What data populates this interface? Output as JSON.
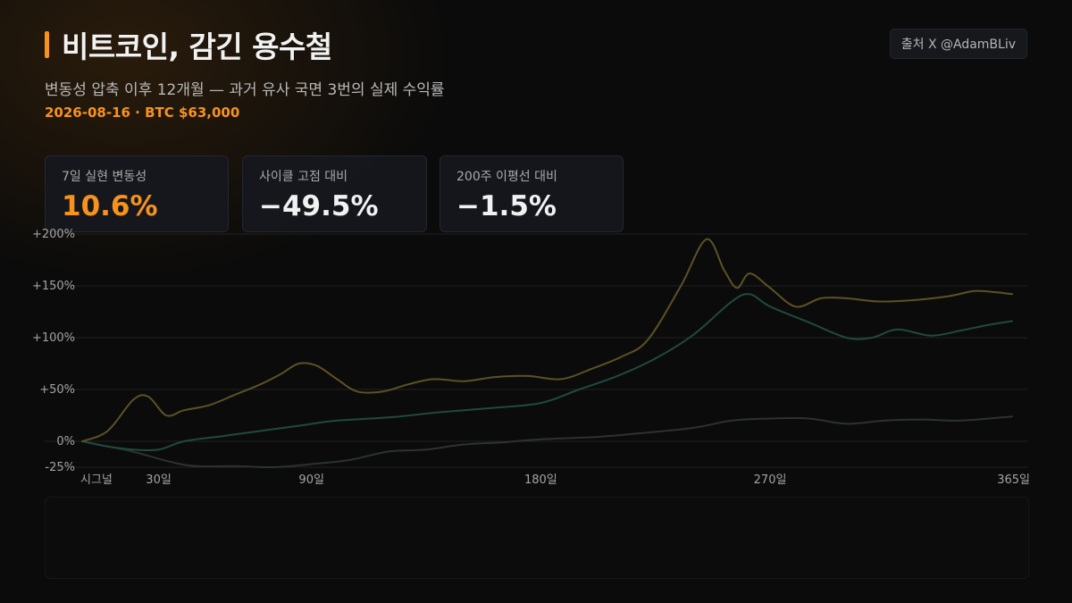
{
  "header": {
    "title": "비트코인, 감긴 용수철",
    "subtitle": "변동성 압축 이후 12개월 — 과거 유사 국면 3번의 실제 수익률",
    "dateline": "2026-08-16 · BTC $63,000",
    "source": "출처 X @AdamBLiv"
  },
  "stats": [
    {
      "label": "7일 실현 변동성",
      "value": "10.6%"
    },
    {
      "label": "사이클 고점 대비",
      "value": "−49.5%"
    },
    {
      "label": "200주 이평선 대비",
      "value": "−1.5%"
    }
  ],
  "colors": {
    "accent": "#f7931a",
    "series_olive": "#5c5224",
    "series_teal": "#1f4a3c",
    "series_gray": "#2b3331"
  },
  "chart_data": {
    "type": "line",
    "xlim": [
      0,
      365
    ],
    "ylim": [
      -25,
      200
    ],
    "grid": true,
    "x_ticks": [
      {
        "x": 0,
        "label": "시그널"
      },
      {
        "x": 30,
        "label": "30일"
      },
      {
        "x": 90,
        "label": "90일"
      },
      {
        "x": 180,
        "label": "180일"
      },
      {
        "x": 270,
        "label": "270일"
      },
      {
        "x": 365,
        "label": "365일"
      }
    ],
    "y_ticks": [
      {
        "y": 200,
        "label": "+200%"
      },
      {
        "y": 150,
        "label": "+150%"
      },
      {
        "y": 100,
        "label": "+100%"
      },
      {
        "y": 50,
        "label": "+50%"
      },
      {
        "y": 0,
        "label": "0%"
      },
      {
        "y": -25,
        "label": "-25%"
      }
    ],
    "series": [
      {
        "color": "#5c5224",
        "points": [
          [
            0,
            0
          ],
          [
            10,
            10
          ],
          [
            20,
            40
          ],
          [
            26,
            43
          ],
          [
            33,
            25
          ],
          [
            40,
            30
          ],
          [
            50,
            35
          ],
          [
            60,
            45
          ],
          [
            70,
            55
          ],
          [
            78,
            65
          ],
          [
            85,
            75
          ],
          [
            92,
            73
          ],
          [
            100,
            60
          ],
          [
            108,
            48
          ],
          [
            118,
            48
          ],
          [
            128,
            55
          ],
          [
            138,
            60
          ],
          [
            150,
            58
          ],
          [
            162,
            62
          ],
          [
            175,
            63
          ],
          [
            188,
            60
          ],
          [
            200,
            70
          ],
          [
            212,
            82
          ],
          [
            222,
            98
          ],
          [
            235,
            150
          ],
          [
            245,
            195
          ],
          [
            252,
            165
          ],
          [
            257,
            148
          ],
          [
            262,
            162
          ],
          [
            270,
            148
          ],
          [
            280,
            130
          ],
          [
            290,
            138
          ],
          [
            300,
            138
          ],
          [
            312,
            135
          ],
          [
            325,
            136
          ],
          [
            340,
            140
          ],
          [
            350,
            145
          ],
          [
            358,
            144
          ],
          [
            365,
            142
          ]
        ]
      },
      {
        "color": "#1f4a3c",
        "points": [
          [
            0,
            0
          ],
          [
            10,
            -5
          ],
          [
            20,
            -8
          ],
          [
            30,
            -8
          ],
          [
            40,
            0
          ],
          [
            55,
            5
          ],
          [
            70,
            10
          ],
          [
            85,
            15
          ],
          [
            100,
            20
          ],
          [
            120,
            23
          ],
          [
            140,
            28
          ],
          [
            160,
            32
          ],
          [
            180,
            37
          ],
          [
            195,
            50
          ],
          [
            210,
            63
          ],
          [
            225,
            80
          ],
          [
            240,
            103
          ],
          [
            255,
            135
          ],
          [
            262,
            142
          ],
          [
            270,
            130
          ],
          [
            285,
            115
          ],
          [
            300,
            100
          ],
          [
            310,
            100
          ],
          [
            320,
            108
          ],
          [
            333,
            102
          ],
          [
            345,
            107
          ],
          [
            355,
            112
          ],
          [
            365,
            116
          ]
        ]
      },
      {
        "color": "#2b3331",
        "points": [
          [
            0,
            0
          ],
          [
            10,
            -5
          ],
          [
            20,
            -10
          ],
          [
            35,
            -20
          ],
          [
            45,
            -24
          ],
          [
            60,
            -24
          ],
          [
            75,
            -25
          ],
          [
            90,
            -22
          ],
          [
            105,
            -18
          ],
          [
            120,
            -10
          ],
          [
            135,
            -8
          ],
          [
            150,
            -3
          ],
          [
            165,
            -1
          ],
          [
            180,
            2
          ],
          [
            200,
            4
          ],
          [
            220,
            8
          ],
          [
            240,
            13
          ],
          [
            255,
            20
          ],
          [
            270,
            22
          ],
          [
            285,
            22
          ],
          [
            300,
            17
          ],
          [
            315,
            20
          ],
          [
            330,
            21
          ],
          [
            345,
            20
          ],
          [
            365,
            24
          ]
        ]
      }
    ]
  }
}
